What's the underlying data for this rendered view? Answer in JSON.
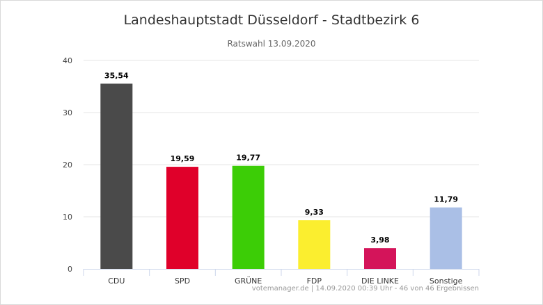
{
  "chart_data": {
    "type": "bar",
    "title": "Landeshauptstadt Düsseldorf - Stadtbezirk 6",
    "subtitle": "Ratswahl 13.09.2020",
    "categories": [
      "CDU",
      "SPD",
      "GRÜNE",
      "FDP",
      "DIE LINKE",
      "Sonstige"
    ],
    "values": [
      35.54,
      19.59,
      19.77,
      9.33,
      3.98,
      11.79
    ],
    "value_labels": [
      "35,54",
      "19,59",
      "19,77",
      "9,33",
      "3,98",
      "11,79"
    ],
    "colors": [
      "#4a4a4a",
      "#e0002a",
      "#3ccd06",
      "#fbee2f",
      "#d4145a",
      "#aabfe6"
    ],
    "ylim": [
      0,
      40
    ],
    "yticks": [
      0,
      10,
      20,
      30,
      40
    ],
    "grid": true,
    "legend": "none"
  },
  "credits": "votemanager.de | 14.09.2020 00:39 Uhr - 46 von 46 Ergebnissen"
}
